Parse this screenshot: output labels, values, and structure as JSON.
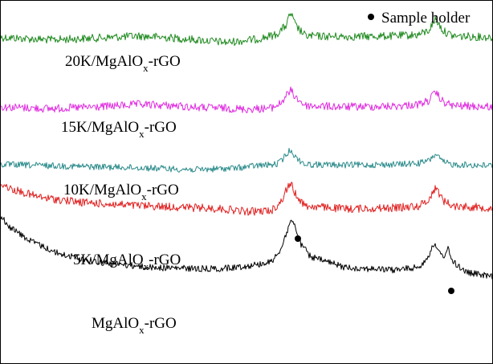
{
  "chart_data": {
    "type": "line",
    "title": "",
    "xlabel": "",
    "ylabel": "",
    "x_range": [
      0,
      100
    ],
    "legend": {
      "marker": "●",
      "text": "Sample holder",
      "placement": "top-right"
    },
    "series": [
      {
        "name": "20K/MgAlOx-rGO",
        "label_main": "20K/MgAlO",
        "label_sub": "x",
        "label_end": "-rGO",
        "color": "#1f8a1f",
        "points": [
          [
            0,
            62
          ],
          [
            10,
            58
          ],
          [
            20,
            61
          ],
          [
            28,
            64
          ],
          [
            35,
            61
          ],
          [
            40,
            58
          ],
          [
            46,
            54
          ],
          [
            52,
            59
          ],
          [
            56,
            66
          ],
          [
            58,
            80
          ],
          [
            59,
            100
          ],
          [
            60,
            80
          ],
          [
            62,
            64
          ],
          [
            70,
            63
          ],
          [
            80,
            64
          ],
          [
            85,
            66
          ],
          [
            87,
            72
          ],
          [
            88.5,
            91
          ],
          [
            90,
            72
          ],
          [
            92,
            64
          ],
          [
            100,
            62
          ]
        ]
      },
      {
        "name": "15K/MgAlOx-rGO",
        "label_main": "15K/MgAlO",
        "label_sub": "x",
        "label_end": "-rGO",
        "color": "#e02de0",
        "points": [
          [
            0,
            68
          ],
          [
            10,
            65
          ],
          [
            20,
            68
          ],
          [
            28,
            72
          ],
          [
            35,
            70
          ],
          [
            40,
            67
          ],
          [
            45,
            66
          ],
          [
            50,
            64
          ],
          [
            55,
            66
          ],
          [
            57,
            74
          ],
          [
            58,
            86
          ],
          [
            59,
            95
          ],
          [
            60,
            84
          ],
          [
            62,
            70
          ],
          [
            70,
            68
          ],
          [
            80,
            69
          ],
          [
            85,
            72
          ],
          [
            87,
            78
          ],
          [
            88.5,
            92
          ],
          [
            90,
            76
          ],
          [
            92,
            70
          ],
          [
            100,
            68
          ]
        ]
      },
      {
        "name": "10K/MgAlOx-rGO",
        "label_main": "10K/MgAlO",
        "label_sub": "x",
        "label_end": "-rGO",
        "color": "#2a8a8a",
        "points": [
          [
            0,
            74
          ],
          [
            10,
            72
          ],
          [
            20,
            70
          ],
          [
            30,
            68
          ],
          [
            40,
            65
          ],
          [
            48,
            68
          ],
          [
            52,
            72
          ],
          [
            56,
            74
          ],
          [
            57,
            80
          ],
          [
            58,
            90
          ],
          [
            59,
            100
          ],
          [
            60,
            86
          ],
          [
            62,
            74
          ],
          [
            70,
            73
          ],
          [
            80,
            74
          ],
          [
            85,
            76
          ],
          [
            87,
            80
          ],
          [
            88.5,
            92
          ],
          [
            90,
            78
          ],
          [
            92,
            74
          ],
          [
            100,
            72
          ]
        ]
      },
      {
        "name": "5K/MgAlOx-rGO",
        "label_main": "5K/MgAlO",
        "label_sub": "x",
        "label_end": "-rGO",
        "color": "#e02020",
        "points": [
          [
            0,
            100
          ],
          [
            2,
            94
          ],
          [
            8,
            85
          ],
          [
            16,
            80
          ],
          [
            25,
            77
          ],
          [
            35,
            75
          ],
          [
            45,
            73
          ],
          [
            50,
            70
          ],
          [
            55,
            71
          ],
          [
            57,
            80
          ],
          [
            58,
            92
          ],
          [
            59,
            100
          ],
          [
            60,
            88
          ],
          [
            62,
            76
          ],
          [
            70,
            73
          ],
          [
            80,
            74
          ],
          [
            85,
            76
          ],
          [
            87,
            82
          ],
          [
            88.5,
            96
          ],
          [
            90,
            82
          ],
          [
            92,
            76
          ],
          [
            100,
            74
          ]
        ]
      },
      {
        "name": "MgAlOx-rGO",
        "label_main": "MgAlO",
        "label_sub": "x",
        "label_end": "-rGO",
        "color": "#000000",
        "points": [
          [
            0,
            100
          ],
          [
            2,
            92
          ],
          [
            6,
            82
          ],
          [
            12,
            72
          ],
          [
            20,
            66
          ],
          [
            30,
            62
          ],
          [
            40,
            61
          ],
          [
            45,
            61
          ],
          [
            50,
            63
          ],
          [
            55,
            66
          ],
          [
            57,
            76
          ],
          [
            58,
            86
          ],
          [
            59,
            98
          ],
          [
            60,
            92
          ],
          [
            61,
            80
          ],
          [
            63,
            70
          ],
          [
            70,
            62
          ],
          [
            80,
            60
          ],
          [
            85,
            62
          ],
          [
            87,
            70
          ],
          [
            88,
            80
          ],
          [
            89,
            74
          ],
          [
            90,
            70
          ],
          [
            91,
            76
          ],
          [
            92,
            66
          ],
          [
            95,
            58
          ],
          [
            100,
            55
          ]
        ]
      }
    ]
  }
}
